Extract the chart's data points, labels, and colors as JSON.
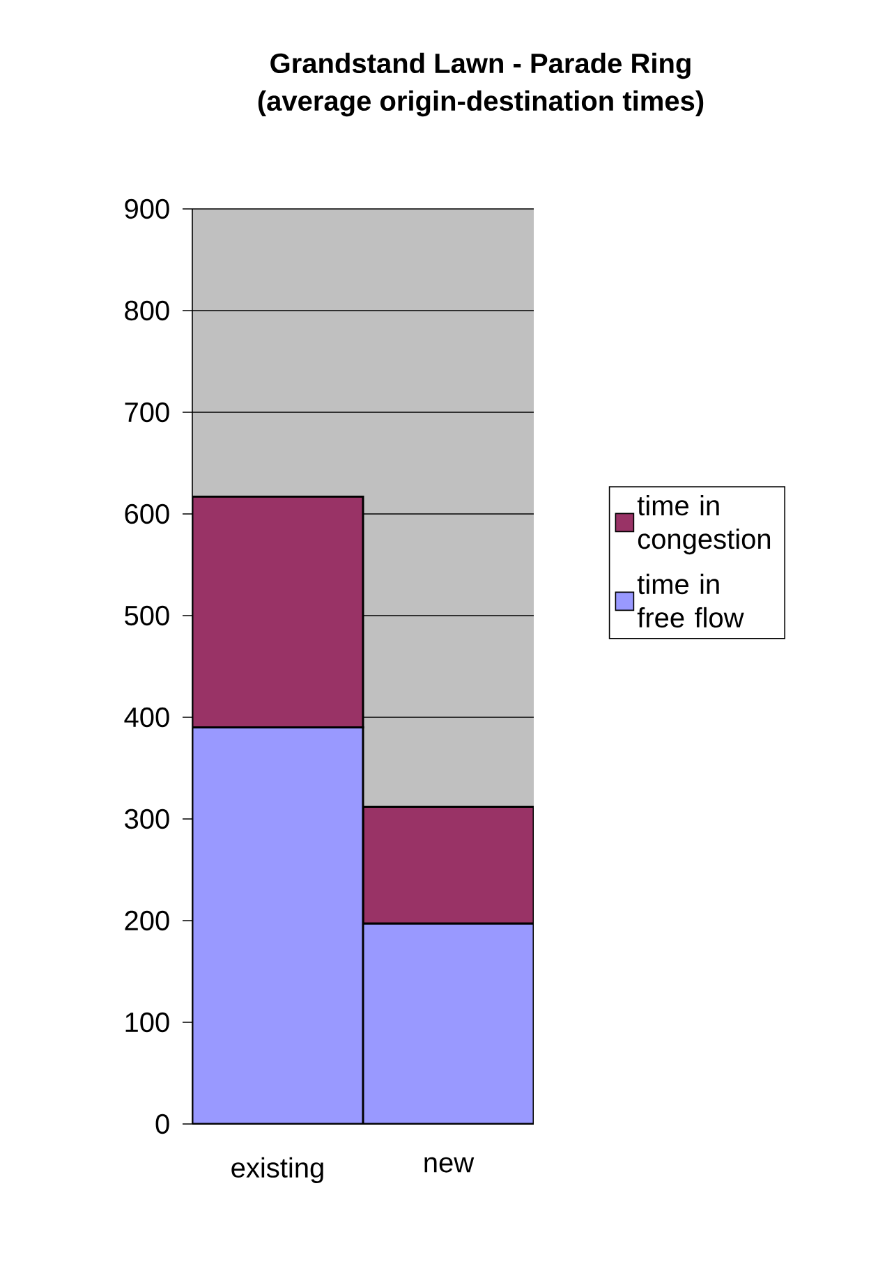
{
  "chart_data": {
    "type": "bar",
    "title": "Grandstand Lawn - Parade Ring",
    "subtitle": "(average origin-destination times)",
    "categories": [
      "existing",
      "new"
    ],
    "stacked": true,
    "series": [
      {
        "name": "time in free flow",
        "color": "#9999ff",
        "values": [
          390,
          197
        ]
      },
      {
        "name": "time in congestion",
        "color": "#993366",
        "values": [
          227,
          115
        ]
      }
    ],
    "ylim": [
      0,
      900
    ],
    "yticks": [
      0,
      100,
      200,
      300,
      400,
      500,
      600,
      700,
      800,
      900
    ],
    "grid": "y",
    "legend": "right"
  }
}
